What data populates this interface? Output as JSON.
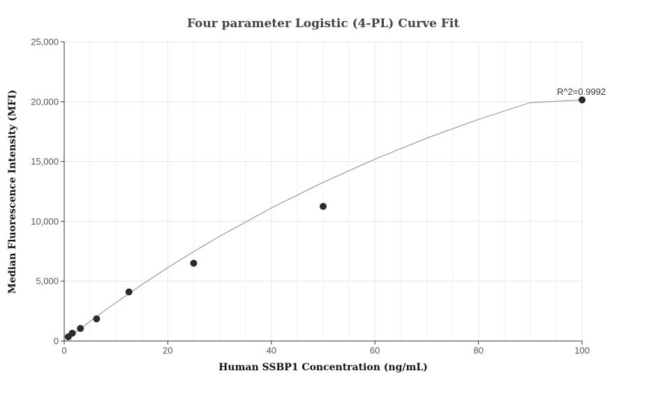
{
  "chart_data": {
    "type": "scatter",
    "title": "Four parameter Logistic (4-PL) Curve Fit",
    "xlabel": "Human SSBP1 Concentration (ng/mL)",
    "ylabel": "Median Fluorescence Intensity (MFI)",
    "xlim": [
      0,
      100
    ],
    "ylim": [
      0,
      25000
    ],
    "x_ticks": [
      0,
      20,
      40,
      60,
      80,
      100
    ],
    "y_ticks": [
      0,
      5000,
      10000,
      15000,
      20000,
      25000
    ],
    "x_tick_labels": [
      "0",
      "20",
      "40",
      "60",
      "80",
      "100"
    ],
    "y_tick_labels": [
      "0",
      "5,000",
      "10,000",
      "15,000",
      "20,000",
      "25,000"
    ],
    "grid": true,
    "points": [
      {
        "x": 0.78,
        "y": 350
      },
      {
        "x": 1.56,
        "y": 650
      },
      {
        "x": 3.13,
        "y": 1050
      },
      {
        "x": 6.25,
        "y": 1850
      },
      {
        "x": 12.5,
        "y": 4100
      },
      {
        "x": 25,
        "y": 6500
      },
      {
        "x": 50,
        "y": 11250
      },
      {
        "x": 100,
        "y": 20150
      }
    ],
    "fit_curve": {
      "model": "4PL",
      "x": [
        0.5,
        1,
        2,
        3,
        5,
        7,
        10,
        15,
        20,
        25,
        30,
        40,
        50,
        60,
        70,
        80,
        90,
        100
      ],
      "y": [
        160,
        330,
        660,
        990,
        1640,
        2280,
        3210,
        4710,
        6130,
        7470,
        8750,
        11120,
        13260,
        15200,
        16950,
        18520,
        19920,
        20150
      ]
    },
    "annotation": {
      "text": "R^2=0.9992",
      "x": 100,
      "y": 20150
    },
    "colors": {
      "marker": "#2b2b2b",
      "curve": "#888888",
      "grid": "#e6e6f0",
      "axis": "#555555"
    }
  }
}
